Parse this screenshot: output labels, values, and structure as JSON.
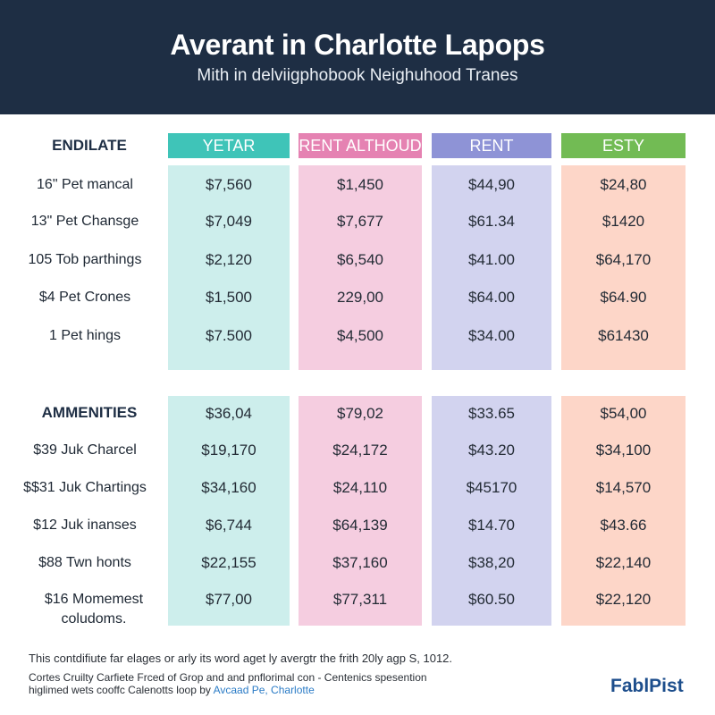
{
  "header": {
    "title": "Averant in Charlotte Lapops",
    "subtitle": "Mith in delviigphobook Neighuhood Tranes"
  },
  "colors": {
    "header_bg": "#1e2e44",
    "teal": "#3fc4b8",
    "pink": "#e582b2",
    "lavender": "#8e93d6",
    "green": "#72bb54"
  },
  "columns": [
    "YETAR",
    "RENT ALTHOUD",
    "RENT",
    "ESTY"
  ],
  "sections": [
    {
      "label": "ENDILATE",
      "rows": [
        {
          "label": "16\" Pet mancal",
          "values": [
            "$7,560",
            "$1,450",
            "$44,90",
            "$24,80"
          ]
        },
        {
          "label": "13\" Pet Chansge",
          "values": [
            "$7,049",
            "$7,677",
            "$61.34",
            "$1420"
          ]
        },
        {
          "label": "105 Tob parthings",
          "values": [
            "$2,120",
            "$6,540",
            "$41.00",
            "$64,170"
          ]
        },
        {
          "label": "$4 Pet Crones",
          "values": [
            "$1,500",
            "229,00",
            "$64.00",
            "$64.90"
          ]
        },
        {
          "label": "1 Pet hings",
          "values": [
            "$7.500",
            "$4,500",
            "$34.00",
            "$61430"
          ]
        }
      ]
    },
    {
      "label": "AMMENITIES",
      "header_values": [
        "$36,04",
        "$79,02",
        "$33.65",
        "$54,00"
      ],
      "rows": [
        {
          "label": "$39 Juk Charcel",
          "values": [
            "$19,170",
            "$24,172",
            "$43.20",
            "$34,100"
          ]
        },
        {
          "label": "$$31 Juk Chartings",
          "values": [
            "$34,160",
            "$24,110",
            "$45170",
            "$14,570"
          ]
        },
        {
          "label": "$12 Juk inanses",
          "values": [
            "$6,744",
            "$64,139",
            "$14.70",
            "$43.66"
          ]
        },
        {
          "label": "$88 Twn honts",
          "values": [
            "$22,155",
            "$37,160",
            "$38,20",
            "$22,140"
          ]
        },
        {
          "label": "$16 Momemest coludoms.",
          "values": [
            "$77,00",
            "$77,311",
            "$60.50",
            "$22,120"
          ]
        }
      ]
    }
  ],
  "footnote": "This contdifiute far elages or arly its word aget ly avergtr the frith 20ly agp S, 1012.",
  "footer": {
    "line1": "Cortes Cruilty Carfiete Frced of Grop and and pnflorimal con - Centenics spesention",
    "line2": "higlimed wets cooffc Calenotts loop by",
    "link": "Avcaad Pe, Charlotte"
  },
  "brand": "FablPist"
}
